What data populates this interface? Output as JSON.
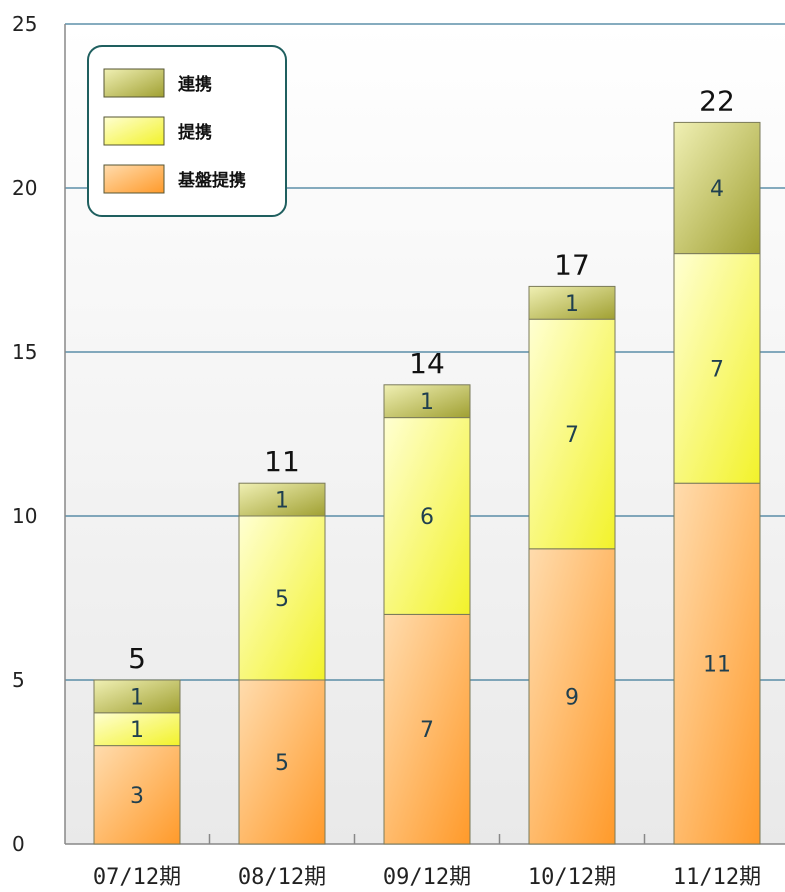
{
  "chart_data": {
    "type": "bar",
    "stacked": true,
    "categories": [
      "07/12期",
      "08/12期",
      "09/12期",
      "10/12期",
      "11/12期"
    ],
    "series": [
      {
        "name": "基盤提携",
        "values": [
          3,
          5,
          7,
          9,
          11
        ],
        "color": "#ffae55"
      },
      {
        "name": "提携",
        "values": [
          1,
          5,
          6,
          7,
          7
        ],
        "color": "#ffff55"
      },
      {
        "name": "連携",
        "values": [
          1,
          1,
          1,
          1,
          4
        ],
        "color": "#c8c864"
      }
    ],
    "totals": [
      5,
      11,
      14,
      17,
      22
    ],
    "yticks": [
      "0",
      "5",
      "10",
      "15",
      "20",
      "25"
    ],
    "ylim": [
      0,
      25
    ],
    "grid": true,
    "legend_position": "top-left",
    "colors": {
      "gridline": "#3d7a99",
      "axis": "#888888",
      "legend_border": "#1f5f5f"
    }
  }
}
